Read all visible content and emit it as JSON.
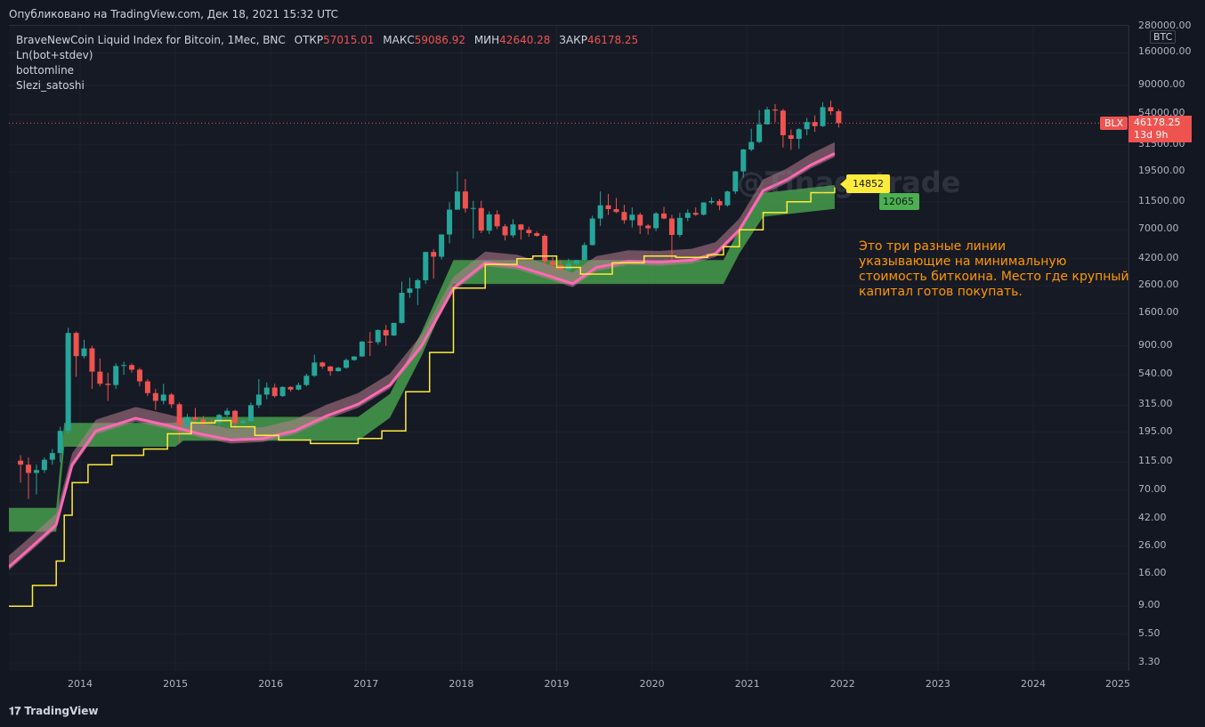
{
  "header": {
    "published": "Опубликовано на TradingView.com, Дек 18, 2021 15:32 UTC"
  },
  "legend": {
    "symbol": "BraveNewCoin Liquid Index for Bitcoin, 1Мес, BNC",
    "open_label": "ОТКР",
    "open_value": "57015.01",
    "high_label": "МАКС",
    "high_value": "59086.92",
    "low_label": "МИН",
    "low_value": "42640.28",
    "close_label": "ЗАКР",
    "close_value": "46178.25",
    "indicators": [
      "Ln(bot+stdev)",
      "bottomline",
      "Slezi_satoshi"
    ]
  },
  "axis": {
    "currency": "BTC",
    "y_ticks": [
      "280000.00",
      "160000.00",
      "90000.00",
      "54000.00",
      "31500.00",
      "19500.00",
      "11500.00",
      "7000.00",
      "4200.00",
      "2600.00",
      "1600.00",
      "900.00",
      "540.00",
      "315.00",
      "195.00",
      "115.00",
      "70.00",
      "42.00",
      "26.00",
      "16.00",
      "9.00",
      "5.50",
      "3.30"
    ],
    "x_ticks": [
      "2014",
      "2015",
      "2016",
      "2017",
      "2018",
      "2019",
      "2020",
      "2021",
      "2022",
      "2023",
      "2024",
      "2025"
    ]
  },
  "tags": {
    "symbol_tag": "BLX",
    "last_price": "46178.25",
    "countdown": "13d 9h",
    "yellow_value": "14852",
    "green_value": "12065"
  },
  "watermark": "@Tinagotrade",
  "annotation": "Это три разные линии\nуказывающие на минимальную\nстоимость биткоина. Место где крупный\nкапитал готов покупать.",
  "footer": {
    "brand": "TradingView"
  },
  "colors": {
    "background": "#161a25",
    "up": "#26a69a",
    "down": "#ef5350",
    "yellow_line": "#ffeb3b",
    "pink_line": "#ff69b4",
    "green_band": "#4caf50",
    "annotation": "#ff9800"
  },
  "chart_data": {
    "type": "candlestick",
    "scale": "log",
    "ylim": [
      3.3,
      280000
    ],
    "xlim": [
      "2013-04",
      "2025-12"
    ],
    "candles": [
      {
        "t": "2013-05",
        "o": 118,
        "h": 130,
        "l": 80,
        "c": 110
      },
      {
        "t": "2013-06",
        "o": 110,
        "h": 125,
        "l": 60,
        "c": 95
      },
      {
        "t": "2013-07",
        "o": 95,
        "h": 110,
        "l": 65,
        "c": 100
      },
      {
        "t": "2013-08",
        "o": 100,
        "h": 125,
        "l": 95,
        "c": 120
      },
      {
        "t": "2013-09",
        "o": 120,
        "h": 145,
        "l": 110,
        "c": 135
      },
      {
        "t": "2013-10",
        "o": 135,
        "h": 215,
        "l": 115,
        "c": 200
      },
      {
        "t": "2013-11",
        "o": 200,
        "h": 1240,
        "l": 190,
        "c": 1130
      },
      {
        "t": "2013-12",
        "o": 1130,
        "h": 1160,
        "l": 520,
        "c": 750
      },
      {
        "t": "2014-01",
        "o": 750,
        "h": 1000,
        "l": 720,
        "c": 860
      },
      {
        "t": "2014-02",
        "o": 860,
        "h": 900,
        "l": 420,
        "c": 570
      },
      {
        "t": "2014-03",
        "o": 570,
        "h": 720,
        "l": 440,
        "c": 460
      },
      {
        "t": "2014-04",
        "o": 460,
        "h": 560,
        "l": 340,
        "c": 450
      },
      {
        "t": "2014-05",
        "o": 450,
        "h": 660,
        "l": 420,
        "c": 630
      },
      {
        "t": "2014-06",
        "o": 630,
        "h": 680,
        "l": 540,
        "c": 640
      },
      {
        "t": "2014-07",
        "o": 640,
        "h": 660,
        "l": 560,
        "c": 590
      },
      {
        "t": "2014-08",
        "o": 590,
        "h": 610,
        "l": 440,
        "c": 480
      },
      {
        "t": "2014-09",
        "o": 480,
        "h": 500,
        "l": 370,
        "c": 390
      },
      {
        "t": "2014-10",
        "o": 390,
        "h": 420,
        "l": 290,
        "c": 340
      },
      {
        "t": "2014-11",
        "o": 340,
        "h": 460,
        "l": 320,
        "c": 380
      },
      {
        "t": "2014-12",
        "o": 380,
        "h": 390,
        "l": 300,
        "c": 320
      },
      {
        "t": "2015-01",
        "o": 320,
        "h": 330,
        "l": 160,
        "c": 220
      },
      {
        "t": "2015-02",
        "o": 220,
        "h": 270,
        "l": 210,
        "c": 255
      },
      {
        "t": "2015-03",
        "o": 255,
        "h": 300,
        "l": 240,
        "c": 245
      },
      {
        "t": "2015-04",
        "o": 245,
        "h": 260,
        "l": 210,
        "c": 235
      },
      {
        "t": "2015-05",
        "o": 235,
        "h": 245,
        "l": 225,
        "c": 230
      },
      {
        "t": "2015-06",
        "o": 230,
        "h": 270,
        "l": 220,
        "c": 265
      },
      {
        "t": "2015-07",
        "o": 265,
        "h": 300,
        "l": 255,
        "c": 285
      },
      {
        "t": "2015-08",
        "o": 285,
        "h": 290,
        "l": 200,
        "c": 230
      },
      {
        "t": "2015-09",
        "o": 230,
        "h": 245,
        "l": 225,
        "c": 238
      },
      {
        "t": "2015-10",
        "o": 238,
        "h": 330,
        "l": 235,
        "c": 315
      },
      {
        "t": "2015-11",
        "o": 315,
        "h": 500,
        "l": 300,
        "c": 380
      },
      {
        "t": "2015-12",
        "o": 380,
        "h": 470,
        "l": 350,
        "c": 430
      },
      {
        "t": "2016-01",
        "o": 430,
        "h": 460,
        "l": 360,
        "c": 370
      },
      {
        "t": "2016-02",
        "o": 370,
        "h": 440,
        "l": 365,
        "c": 435
      },
      {
        "t": "2016-03",
        "o": 435,
        "h": 440,
        "l": 400,
        "c": 415
      },
      {
        "t": "2016-04",
        "o": 415,
        "h": 470,
        "l": 410,
        "c": 450
      },
      {
        "t": "2016-05",
        "o": 450,
        "h": 550,
        "l": 440,
        "c": 530
      },
      {
        "t": "2016-06",
        "o": 530,
        "h": 770,
        "l": 520,
        "c": 670
      },
      {
        "t": "2016-07",
        "o": 670,
        "h": 680,
        "l": 600,
        "c": 625
      },
      {
        "t": "2016-08",
        "o": 625,
        "h": 630,
        "l": 530,
        "c": 575
      },
      {
        "t": "2016-09",
        "o": 575,
        "h": 620,
        "l": 570,
        "c": 610
      },
      {
        "t": "2016-10",
        "o": 610,
        "h": 720,
        "l": 600,
        "c": 700
      },
      {
        "t": "2016-11",
        "o": 700,
        "h": 750,
        "l": 690,
        "c": 745
      },
      {
        "t": "2016-12",
        "o": 745,
        "h": 980,
        "l": 740,
        "c": 970
      },
      {
        "t": "2017-01",
        "o": 970,
        "h": 1150,
        "l": 750,
        "c": 960
      },
      {
        "t": "2017-02",
        "o": 960,
        "h": 1200,
        "l": 920,
        "c": 1190
      },
      {
        "t": "2017-03",
        "o": 1190,
        "h": 1300,
        "l": 900,
        "c": 1080
      },
      {
        "t": "2017-04",
        "o": 1080,
        "h": 1350,
        "l": 1070,
        "c": 1350
      },
      {
        "t": "2017-05",
        "o": 1350,
        "h": 2800,
        "l": 1330,
        "c": 2300
      },
      {
        "t": "2017-06",
        "o": 2300,
        "h": 3000,
        "l": 2100,
        "c": 2480
      },
      {
        "t": "2017-07",
        "o": 2480,
        "h": 2950,
        "l": 1850,
        "c": 2870
      },
      {
        "t": "2017-08",
        "o": 2870,
        "h": 4750,
        "l": 2700,
        "c": 4730
      },
      {
        "t": "2017-09",
        "o": 4730,
        "h": 4980,
        "l": 2950,
        "c": 4350
      },
      {
        "t": "2017-10",
        "o": 4350,
        "h": 6450,
        "l": 4150,
        "c": 6450
      },
      {
        "t": "2017-11",
        "o": 6450,
        "h": 11400,
        "l": 5500,
        "c": 10000
      },
      {
        "t": "2017-12",
        "o": 10000,
        "h": 19700,
        "l": 10000,
        "c": 13800
      },
      {
        "t": "2018-01",
        "o": 13800,
        "h": 17200,
        "l": 9500,
        "c": 10200
      },
      {
        "t": "2018-02",
        "o": 10200,
        "h": 11700,
        "l": 6000,
        "c": 10300
      },
      {
        "t": "2018-03",
        "o": 10300,
        "h": 11700,
        "l": 6600,
        "c": 6900
      },
      {
        "t": "2018-04",
        "o": 6900,
        "h": 9700,
        "l": 6500,
        "c": 9200
      },
      {
        "t": "2018-05",
        "o": 9200,
        "h": 9900,
        "l": 7100,
        "c": 7450
      },
      {
        "t": "2018-06",
        "o": 7450,
        "h": 7750,
        "l": 5800,
        "c": 6350
      },
      {
        "t": "2018-07",
        "o": 6350,
        "h": 8450,
        "l": 6100,
        "c": 7700
      },
      {
        "t": "2018-08",
        "o": 7700,
        "h": 7750,
        "l": 5900,
        "c": 7000
      },
      {
        "t": "2018-09",
        "o": 7000,
        "h": 7400,
        "l": 6200,
        "c": 6600
      },
      {
        "t": "2018-10",
        "o": 6600,
        "h": 6800,
        "l": 6200,
        "c": 6300
      },
      {
        "t": "2018-11",
        "o": 6300,
        "h": 6500,
        "l": 3600,
        "c": 4000
      },
      {
        "t": "2018-12",
        "o": 4000,
        "h": 4300,
        "l": 3150,
        "c": 3750
      },
      {
        "t": "2019-01",
        "o": 3750,
        "h": 4100,
        "l": 3400,
        "c": 3450
      },
      {
        "t": "2019-02",
        "o": 3450,
        "h": 4200,
        "l": 3400,
        "c": 3850
      },
      {
        "t": "2019-03",
        "o": 3850,
        "h": 4100,
        "l": 3700,
        "c": 4100
      },
      {
        "t": "2019-04",
        "o": 4100,
        "h": 5600,
        "l": 4050,
        "c": 5350
      },
      {
        "t": "2019-05",
        "o": 5350,
        "h": 9000,
        "l": 5300,
        "c": 8550
      },
      {
        "t": "2019-06",
        "o": 8550,
        "h": 13800,
        "l": 7500,
        "c": 10800
      },
      {
        "t": "2019-07",
        "o": 10800,
        "h": 13200,
        "l": 9100,
        "c": 10100
      },
      {
        "t": "2019-08",
        "o": 10100,
        "h": 12300,
        "l": 9400,
        "c": 9600
      },
      {
        "t": "2019-09",
        "o": 9600,
        "h": 10900,
        "l": 7800,
        "c": 8300
      },
      {
        "t": "2019-10",
        "o": 8300,
        "h": 10400,
        "l": 7300,
        "c": 9150
      },
      {
        "t": "2019-11",
        "o": 9150,
        "h": 9500,
        "l": 6500,
        "c": 7550
      },
      {
        "t": "2019-12",
        "o": 7550,
        "h": 7750,
        "l": 6450,
        "c": 7200
      },
      {
        "t": "2020-01",
        "o": 7200,
        "h": 9600,
        "l": 6850,
        "c": 9350
      },
      {
        "t": "2020-02",
        "o": 9350,
        "h": 10500,
        "l": 8450,
        "c": 8550
      },
      {
        "t": "2020-03",
        "o": 8550,
        "h": 9150,
        "l": 3850,
        "c": 6400
      },
      {
        "t": "2020-04",
        "o": 6400,
        "h": 9450,
        "l": 6150,
        "c": 8650
      },
      {
        "t": "2020-05",
        "o": 8650,
        "h": 10050,
        "l": 8150,
        "c": 9450
      },
      {
        "t": "2020-06",
        "o": 9450,
        "h": 10400,
        "l": 8950,
        "c": 9150
      },
      {
        "t": "2020-07",
        "o": 9150,
        "h": 11400,
        "l": 9050,
        "c": 11350
      },
      {
        "t": "2020-08",
        "o": 11350,
        "h": 12450,
        "l": 11000,
        "c": 11650
      },
      {
        "t": "2020-09",
        "o": 11650,
        "h": 12050,
        "l": 9900,
        "c": 10800
      },
      {
        "t": "2020-10",
        "o": 10800,
        "h": 14000,
        "l": 10550,
        "c": 13800
      },
      {
        "t": "2020-11",
        "o": 13800,
        "h": 19800,
        "l": 13200,
        "c": 19700
      },
      {
        "t": "2020-12",
        "o": 19700,
        "h": 29300,
        "l": 17600,
        "c": 29000
      },
      {
        "t": "2021-01",
        "o": 29000,
        "h": 41900,
        "l": 28100,
        "c": 33100
      },
      {
        "t": "2021-02",
        "o": 33100,
        "h": 58300,
        "l": 32400,
        "c": 45200
      },
      {
        "t": "2021-03",
        "o": 45200,
        "h": 61700,
        "l": 45000,
        "c": 58800
      },
      {
        "t": "2021-04",
        "o": 58800,
        "h": 64800,
        "l": 47000,
        "c": 57700
      },
      {
        "t": "2021-05",
        "o": 57700,
        "h": 59500,
        "l": 30000,
        "c": 37300
      },
      {
        "t": "2021-06",
        "o": 37300,
        "h": 41300,
        "l": 28800,
        "c": 35000
      },
      {
        "t": "2021-07",
        "o": 35000,
        "h": 42400,
        "l": 29300,
        "c": 41500
      },
      {
        "t": "2021-08",
        "o": 41500,
        "h": 50500,
        "l": 37300,
        "c": 47100
      },
      {
        "t": "2021-09",
        "o": 47100,
        "h": 52900,
        "l": 39600,
        "c": 43800
      },
      {
        "t": "2021-10",
        "o": 43800,
        "h": 66900,
        "l": 43200,
        "c": 61300
      },
      {
        "t": "2021-11",
        "o": 61300,
        "h": 69000,
        "l": 53300,
        "c": 57000
      },
      {
        "t": "2021-12",
        "o": 57015.01,
        "h": 59086.92,
        "l": 42640.28,
        "c": 46178.25
      }
    ],
    "series": [
      {
        "name": "bottomline",
        "points": [
          [
            "2013-04",
            9
          ],
          [
            "2013-07",
            13
          ],
          [
            "2013-10",
            20
          ],
          [
            "2013-11",
            45
          ],
          [
            "2013-12",
            80
          ],
          [
            "2014-02",
            110
          ],
          [
            "2014-05",
            130
          ],
          [
            "2014-09",
            145
          ],
          [
            "2014-12",
            190
          ],
          [
            "2015-03",
            230
          ],
          [
            "2015-06",
            240
          ],
          [
            "2015-08",
            215
          ],
          [
            "2015-11",
            185
          ],
          [
            "2016-02",
            170
          ],
          [
            "2016-06",
            160
          ],
          [
            "2016-12",
            175
          ],
          [
            "2017-03",
            200
          ],
          [
            "2017-06",
            400
          ],
          [
            "2017-09",
            800
          ],
          [
            "2017-12",
            2500
          ],
          [
            "2018-04",
            3800
          ],
          [
            "2018-08",
            4200
          ],
          [
            "2018-10",
            4400
          ],
          [
            "2019-01",
            3600
          ],
          [
            "2019-04",
            3200
          ],
          [
            "2019-08",
            3900
          ],
          [
            "2019-12",
            4400
          ],
          [
            "2020-04",
            4300
          ],
          [
            "2020-08",
            4500
          ],
          [
            "2020-10",
            5200
          ],
          [
            "2020-12",
            7000
          ],
          [
            "2021-03",
            9500
          ],
          [
            "2021-06",
            11500
          ],
          [
            "2021-09",
            13500
          ],
          [
            "2021-12",
            14852
          ]
        ]
      },
      {
        "name": "Ln(bot+stdev)",
        "points": [
          [
            "2013-04",
            18
          ],
          [
            "2013-07",
            26
          ],
          [
            "2013-10",
            38
          ],
          [
            "2013-12",
            110
          ],
          [
            "2014-03",
            200
          ],
          [
            "2014-08",
            250
          ],
          [
            "2014-12",
            220
          ],
          [
            "2015-04",
            190
          ],
          [
            "2015-08",
            170
          ],
          [
            "2015-12",
            175
          ],
          [
            "2016-04",
            200
          ],
          [
            "2016-08",
            260
          ],
          [
            "2016-12",
            320
          ],
          [
            "2017-04",
            450
          ],
          [
            "2017-08",
            900
          ],
          [
            "2017-12",
            2500
          ],
          [
            "2018-04",
            3900
          ],
          [
            "2018-08",
            3700
          ],
          [
            "2018-12",
            3100
          ],
          [
            "2019-03",
            2700
          ],
          [
            "2019-06",
            3600
          ],
          [
            "2019-10",
            4000
          ],
          [
            "2020-02",
            3950
          ],
          [
            "2020-06",
            4100
          ],
          [
            "2020-09",
            4600
          ],
          [
            "2020-12",
            7000
          ],
          [
            "2021-03",
            14000
          ],
          [
            "2021-06",
            17000
          ],
          [
            "2021-09",
            22000
          ],
          [
            "2021-12",
            27000
          ]
        ]
      },
      {
        "name": "Slezi_satoshi",
        "points": [
          [
            "2013-04",
            40
          ],
          [
            "2013-10",
            40
          ],
          [
            "2013-11",
            180
          ],
          [
            "2015-01",
            180
          ],
          [
            "2015-02",
            200
          ],
          [
            "2016-12",
            200
          ],
          [
            "2017-04",
            300
          ],
          [
            "2017-08",
            900
          ],
          [
            "2017-12",
            3200
          ],
          [
            "2020-10",
            3200
          ],
          [
            "2020-12",
            5500
          ],
          [
            "2021-03",
            10500
          ],
          [
            "2021-12",
            12065
          ]
        ]
      }
    ]
  }
}
